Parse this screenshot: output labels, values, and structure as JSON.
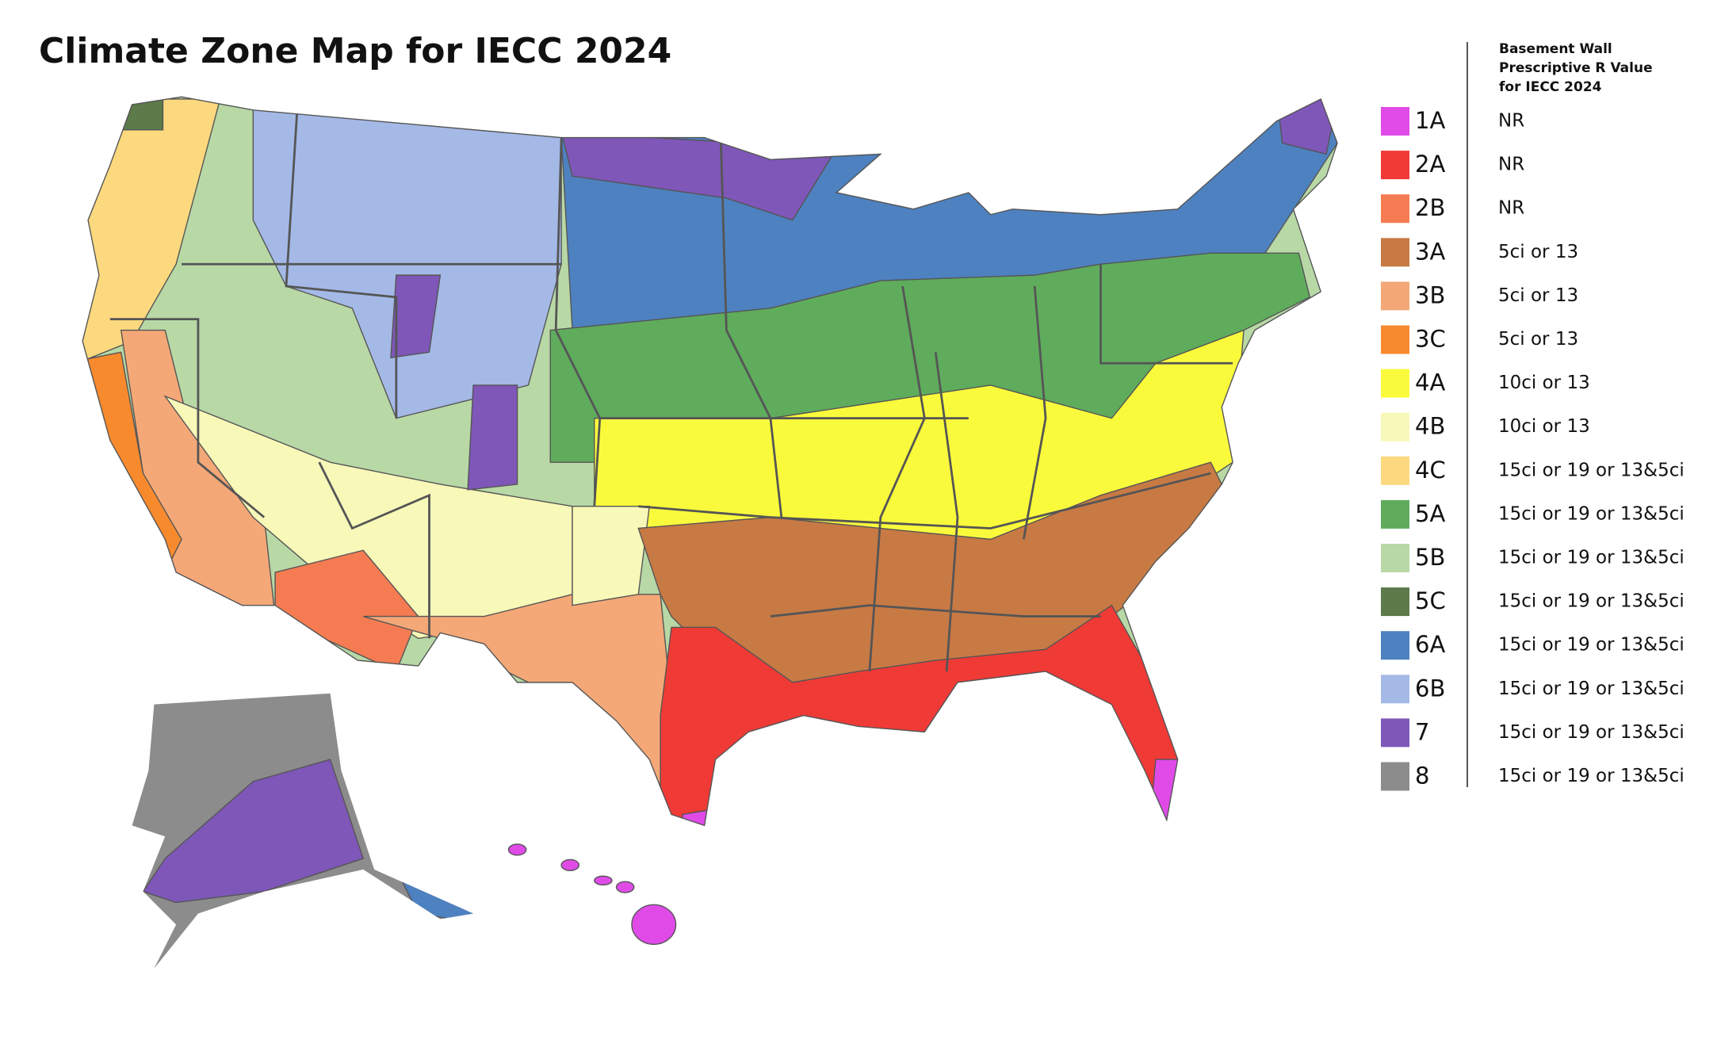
{
  "title": "Climate Zone Map for IECC 2024",
  "legend": {
    "header": [
      "Basement Wall",
      "Prescriptive R Value",
      "for IECC 2024"
    ],
    "items": [
      {
        "zone": "1A",
        "color": "#e04be8",
        "r_value": "NR"
      },
      {
        "zone": "2A",
        "color": "#f03a36",
        "r_value": "NR"
      },
      {
        "zone": "2B",
        "color": "#f57c52",
        "r_value": "NR"
      },
      {
        "zone": "3A",
        "color": "#c87a44",
        "r_value": "5ci or 13"
      },
      {
        "zone": "3B",
        "color": "#f4a877",
        "r_value": "5ci or 13"
      },
      {
        "zone": "3C",
        "color": "#f88a2e",
        "r_value": "5ci or 13"
      },
      {
        "zone": "4A",
        "color": "#fafa3c",
        "r_value": "10ci or 13"
      },
      {
        "zone": "4B",
        "color": "#f8f8b8",
        "r_value": "10ci or 13"
      },
      {
        "zone": "4C",
        "color": "#fcd97e",
        "r_value": "15ci or 19 or 13&5ci"
      },
      {
        "zone": "5A",
        "color": "#5fac5c",
        "r_value": "15ci or 19 or 13&5ci"
      },
      {
        "zone": "5B",
        "color": "#b8d8a6",
        "r_value": "15ci or 19 or 13&5ci"
      },
      {
        "zone": "5C",
        "color": "#5c7a4a",
        "r_value": "15ci or 19 or 13&5ci"
      },
      {
        "zone": "6A",
        "color": "#4e81c0",
        "r_value": "15ci or 19 or 13&5ci"
      },
      {
        "zone": "6B",
        "color": "#a4b9e6",
        "r_value": "15ci or 19 or 13&5ci"
      },
      {
        "zone": "7",
        "color": "#7e57b8",
        "r_value": "15ci or 19 or 13&5ci"
      },
      {
        "zone": "8",
        "color": "#8c8c8c",
        "r_value": "15ci or 19 or 13&5ci"
      }
    ]
  }
}
